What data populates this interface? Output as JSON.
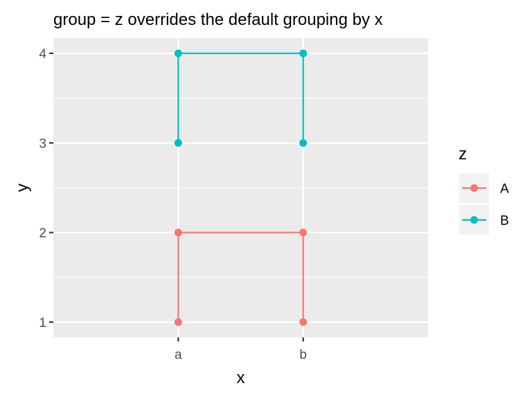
{
  "chart_data": {
    "type": "line",
    "title": "group = z overrides the default grouping by x",
    "xlabel": "x",
    "ylabel": "y",
    "categories": [
      "a",
      "b"
    ],
    "y_ticks": [
      1,
      2,
      3,
      4
    ],
    "ylim": [
      0.83,
      4.17
    ],
    "grid": true,
    "legend": {
      "title": "z",
      "placement": "right"
    },
    "series": [
      {
        "name": "A",
        "color": "#F8766D",
        "points": [
          {
            "x": "a",
            "y": 1
          },
          {
            "x": "a",
            "y": 2
          },
          {
            "x": "b",
            "y": 2
          },
          {
            "x": "b",
            "y": 1
          }
        ]
      },
      {
        "name": "B",
        "color": "#00BFC4",
        "points": [
          {
            "x": "a",
            "y": 3
          },
          {
            "x": "a",
            "y": 4
          },
          {
            "x": "b",
            "y": 4
          },
          {
            "x": "b",
            "y": 3
          }
        ]
      }
    ]
  }
}
